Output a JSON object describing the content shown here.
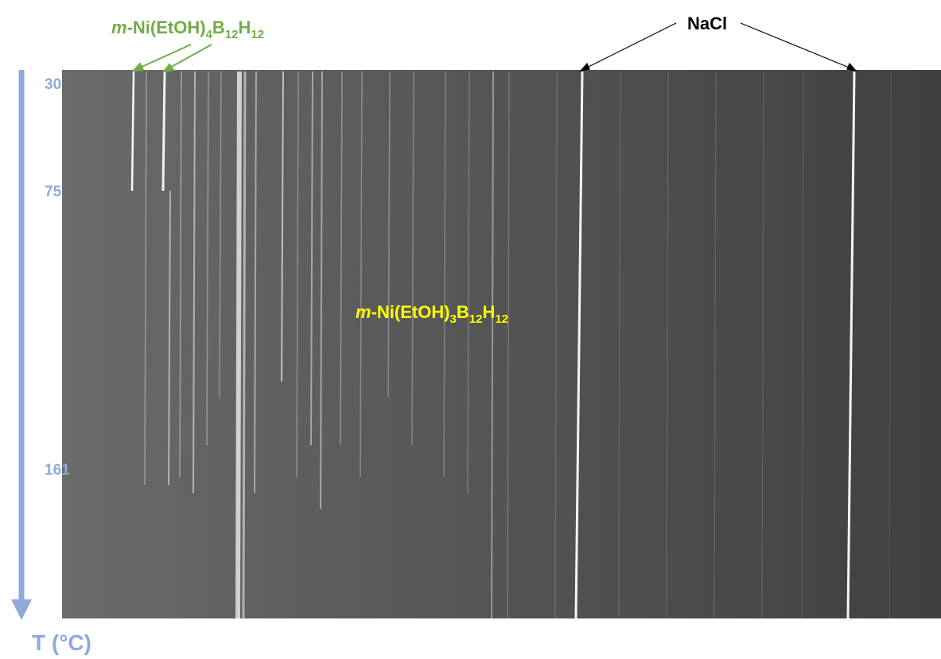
{
  "phases": {
    "tetra": [
      "m",
      "-Ni(EtOH)",
      "4",
      "B",
      "12",
      "H",
      "12"
    ],
    "tri": [
      "m",
      "-Ni(EtOH)",
      "3",
      "B",
      "12",
      "H",
      "12"
    ],
    "salt": "NaCl"
  },
  "temperature_axis": {
    "label": "T (°C)",
    "ticks": [
      30,
      75,
      161
    ]
  }
}
